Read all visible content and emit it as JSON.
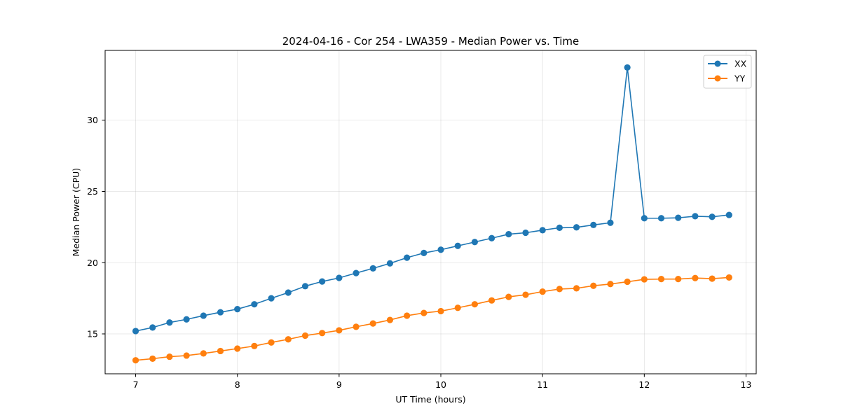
{
  "chart_data": {
    "type": "line",
    "title": "2024-04-16 - Cor 254 - LWA359 - Median Power vs. Time",
    "xlabel": "UT Time (hours)",
    "ylabel": "Median Power (CPU)",
    "xlim": [
      6.7,
      13.1
    ],
    "ylim": [
      12.2,
      34.9
    ],
    "xticks": [
      7,
      8,
      9,
      10,
      11,
      12,
      13
    ],
    "yticks": [
      15,
      20,
      25,
      30
    ],
    "grid": true,
    "legend_position": "top-right",
    "series": [
      {
        "name": "XX",
        "color": "#1f77b4",
        "x": [
          7.0,
          7.1667,
          7.3333,
          7.5,
          7.6667,
          7.8333,
          8.0,
          8.1667,
          8.3333,
          8.5,
          8.6667,
          8.8333,
          9.0,
          9.1667,
          9.3333,
          9.5,
          9.6667,
          9.8333,
          10.0,
          10.1667,
          10.3333,
          10.5,
          10.6667,
          10.8333,
          11.0,
          11.1667,
          11.3333,
          11.5,
          11.6667,
          11.8333,
          12.0,
          12.1667,
          12.3333,
          12.5,
          12.6667,
          12.8333
        ],
        "y": [
          15.2,
          15.45,
          15.8,
          16.02,
          16.28,
          16.52,
          16.74,
          17.08,
          17.5,
          17.9,
          18.35,
          18.68,
          18.93,
          19.27,
          19.6,
          19.95,
          20.35,
          20.68,
          20.91,
          21.18,
          21.45,
          21.72,
          22.0,
          22.1,
          22.28,
          22.45,
          22.48,
          22.65,
          22.8,
          33.7,
          23.12,
          23.12,
          23.15,
          23.26,
          23.22,
          23.35
        ]
      },
      {
        "name": "YY",
        "color": "#ff7f0e",
        "x": [
          7.0,
          7.1667,
          7.3333,
          7.5,
          7.6667,
          7.8333,
          8.0,
          8.1667,
          8.3333,
          8.5,
          8.6667,
          8.8333,
          9.0,
          9.1667,
          9.3333,
          9.5,
          9.6667,
          9.8333,
          10.0,
          10.1667,
          10.3333,
          10.5,
          10.6667,
          10.8333,
          11.0,
          11.1667,
          11.3333,
          11.5,
          11.6667,
          11.8333,
          12.0,
          12.1667,
          12.3333,
          12.5,
          12.6667,
          12.8333
        ],
        "y": [
          13.15,
          13.26,
          13.4,
          13.48,
          13.63,
          13.8,
          13.97,
          14.15,
          14.4,
          14.62,
          14.88,
          15.06,
          15.25,
          15.5,
          15.73,
          15.98,
          16.28,
          16.47,
          16.6,
          16.83,
          17.08,
          17.35,
          17.6,
          17.75,
          17.97,
          18.15,
          18.2,
          18.38,
          18.5,
          18.66,
          18.83,
          18.85,
          18.85,
          18.92,
          18.88,
          18.96
        ]
      }
    ]
  }
}
